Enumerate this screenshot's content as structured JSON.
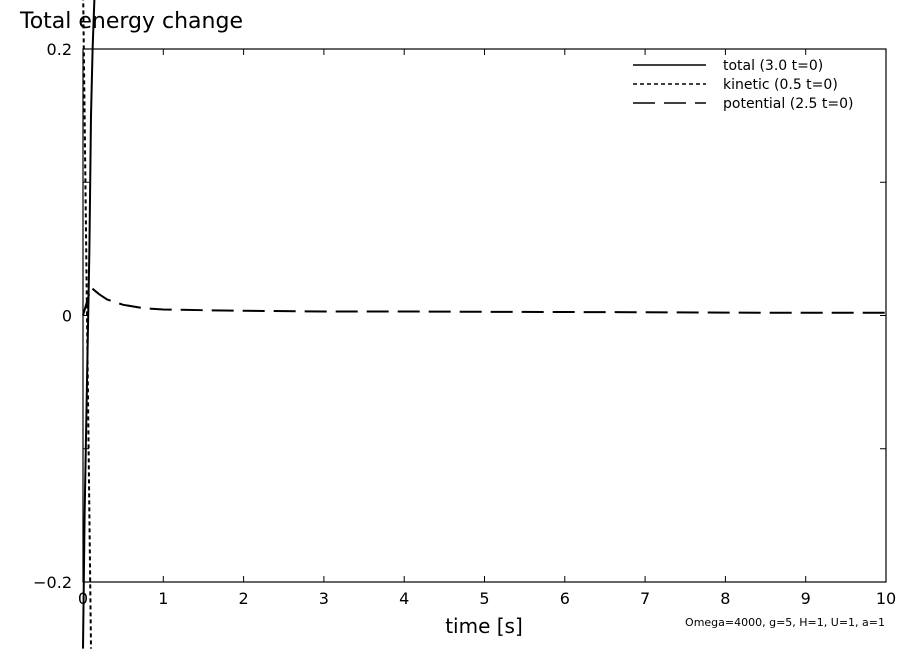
{
  "chart_data": {
    "type": "line",
    "title": "Total energy change",
    "xlabel": "time [s]",
    "ylabel": "",
    "xlim": [
      0,
      10
    ],
    "ylim": [
      -0.2,
      0.2
    ],
    "xticks": [
      "0",
      "1",
      "2",
      "3",
      "4",
      "5",
      "6",
      "7",
      "8",
      "9",
      "10"
    ],
    "yticks": [
      "-0.2",
      "0",
      "0.2"
    ],
    "annotation": "Omega=4000, g=5, H=1, U=1, a=1",
    "legend_position": "top-right",
    "grid": false,
    "series": [
      {
        "name": "total (3.0 t=0)",
        "style": "solid",
        "x": [
          0.0,
          0.02,
          0.05,
          0.08,
          0.1,
          0.12,
          0.15
        ],
        "y": [
          -0.25,
          -0.15,
          -0.05,
          0.05,
          0.15,
          0.2,
          0.25
        ]
      },
      {
        "name": "kinetic (0.5 t=0)",
        "style": "dotted",
        "x": [
          0.0,
          0.02,
          0.04,
          0.06,
          0.08,
          0.1
        ],
        "y": [
          0.25,
          0.15,
          0.05,
          -0.05,
          -0.15,
          -0.25
        ]
      },
      {
        "name": "potential (2.5 t=0)",
        "style": "dashed",
        "x": [
          0.0,
          0.1,
          0.2,
          0.3,
          0.5,
          0.75,
          1.0,
          1.5,
          2.0,
          3.0,
          4.0,
          5.0,
          6.0,
          7.0,
          8.0,
          9.0,
          10.0
        ],
        "y": [
          0.0,
          0.021,
          0.016,
          0.012,
          0.008,
          0.0055,
          0.0045,
          0.004,
          0.0035,
          0.003,
          0.003,
          0.0028,
          0.0026,
          0.0024,
          0.0022,
          0.002,
          0.002
        ]
      }
    ]
  }
}
